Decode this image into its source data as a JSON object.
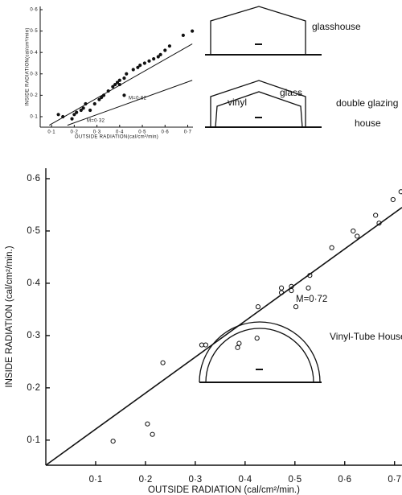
{
  "chart_data": [
    {
      "type": "scatter",
      "xlabel": "OUTSIDE RADIATION(cal/cm²/min)",
      "ylabel": "INSIDE RADIATION(cal/cm²/min)",
      "xlim": [
        0.05,
        0.723
      ],
      "ylim": [
        0.051,
        0.615
      ],
      "xticks": [
        {
          "value": 0.1,
          "label": "0·1"
        },
        {
          "value": 0.2,
          "label": "0·2"
        },
        {
          "value": 0.3,
          "label": "0·3"
        },
        {
          "value": 0.4,
          "label": "0·4"
        },
        {
          "value": 0.5,
          "label": "0·5"
        },
        {
          "value": 0.6,
          "label": "0·6"
        },
        {
          "value": 0.7,
          "label": "0·7"
        }
      ],
      "yticks": [
        {
          "value": 0.1,
          "label": "0·1"
        },
        {
          "value": 0.2,
          "label": "0·2"
        },
        {
          "value": 0.3,
          "label": "0·3"
        },
        {
          "value": 0.4,
          "label": "0·4"
        },
        {
          "value": 0.5,
          "label": "0·5"
        },
        {
          "value": 0.6,
          "label": "0·6"
        }
      ],
      "marker": "filled",
      "color": "#111111",
      "x": [
        0.13,
        0.15,
        0.19,
        0.2,
        0.21,
        0.23,
        0.24,
        0.25,
        0.27,
        0.29,
        0.31,
        0.32,
        0.33,
        0.35,
        0.37,
        0.38,
        0.39,
        0.4,
        0.42,
        0.43,
        0.46,
        0.48,
        0.49,
        0.51,
        0.53,
        0.55,
        0.57,
        0.58,
        0.6,
        0.62,
        0.68,
        0.72,
        0.42,
        0.4
      ],
      "y": [
        0.11,
        0.1,
        0.09,
        0.11,
        0.12,
        0.13,
        0.14,
        0.16,
        0.13,
        0.16,
        0.18,
        0.19,
        0.2,
        0.22,
        0.24,
        0.25,
        0.26,
        0.25,
        0.28,
        0.3,
        0.32,
        0.33,
        0.34,
        0.35,
        0.36,
        0.37,
        0.38,
        0.39,
        0.41,
        0.43,
        0.48,
        0.5,
        0.2,
        0.27
      ],
      "fits": [
        {
          "type": "line",
          "x": [
            0.09,
            0.72
          ],
          "y": [
            0.06,
            0.44
          ]
        },
        {
          "type": "line",
          "x": [
            0.17,
            0.72
          ],
          "y": [
            0.06,
            0.27
          ]
        }
      ],
      "annotations": [
        "M=0·62",
        "M=0·32"
      ]
    },
    {
      "type": "scatter",
      "xlabel": "OUTSIDE RADIATION (cal/cm²/min.)",
      "ylabel": "INSIDE RADIATION (cal/cm²/min.)",
      "xlim": [
        0,
        0.715
      ],
      "ylim": [
        0.052,
        0.62
      ],
      "xticks": [
        {
          "value": 0.1,
          "label": "0·1"
        },
        {
          "value": 0.2,
          "label": "0·2"
        },
        {
          "value": 0.3,
          "label": "0·3"
        },
        {
          "value": 0.4,
          "label": "0·4"
        },
        {
          "value": 0.5,
          "label": "0·5"
        },
        {
          "value": 0.6,
          "label": "0·6"
        },
        {
          "value": 0.7,
          "label": "0·7"
        }
      ],
      "yticks": [
        {
          "value": 0.1,
          "label": "0·1"
        },
        {
          "value": 0.2,
          "label": "0·2"
        },
        {
          "value": 0.3,
          "label": "0·3"
        },
        {
          "value": 0.4,
          "label": "0·4"
        },
        {
          "value": 0.5,
          "label": "0·5"
        },
        {
          "value": 0.6,
          "label": "0·6"
        }
      ],
      "marker": "open",
      "color": "#111111",
      "x": [
        0.135,
        0.204,
        0.214,
        0.235,
        0.313,
        0.321,
        0.385,
        0.388,
        0.424,
        0.426,
        0.473,
        0.473,
        0.493,
        0.493,
        0.502,
        0.53,
        0.527,
        0.574,
        0.617,
        0.625,
        0.662,
        0.669,
        0.697,
        0.713
      ],
      "y": [
        0.098,
        0.131,
        0.111,
        0.248,
        0.282,
        0.282,
        0.277,
        0.285,
        0.295,
        0.355,
        0.382,
        0.391,
        0.394,
        0.386,
        0.355,
        0.415,
        0.391,
        0.468,
        0.5,
        0.49,
        0.53,
        0.515,
        0.56,
        0.575
      ],
      "fits": [
        {
          "type": "line",
          "x": [
            0,
            0.715
          ],
          "y": [
            0.052,
            0.545
          ]
        }
      ],
      "annotations": [
        "M=0·72"
      ]
    }
  ],
  "diagrams": {
    "glasshouse": "glasshouse",
    "glass": "glass",
    "vinyl": "vinyl",
    "double_glazing": [
      "double glazing",
      "house"
    ],
    "vinyl_tube": "Vinyl-Tube House"
  }
}
